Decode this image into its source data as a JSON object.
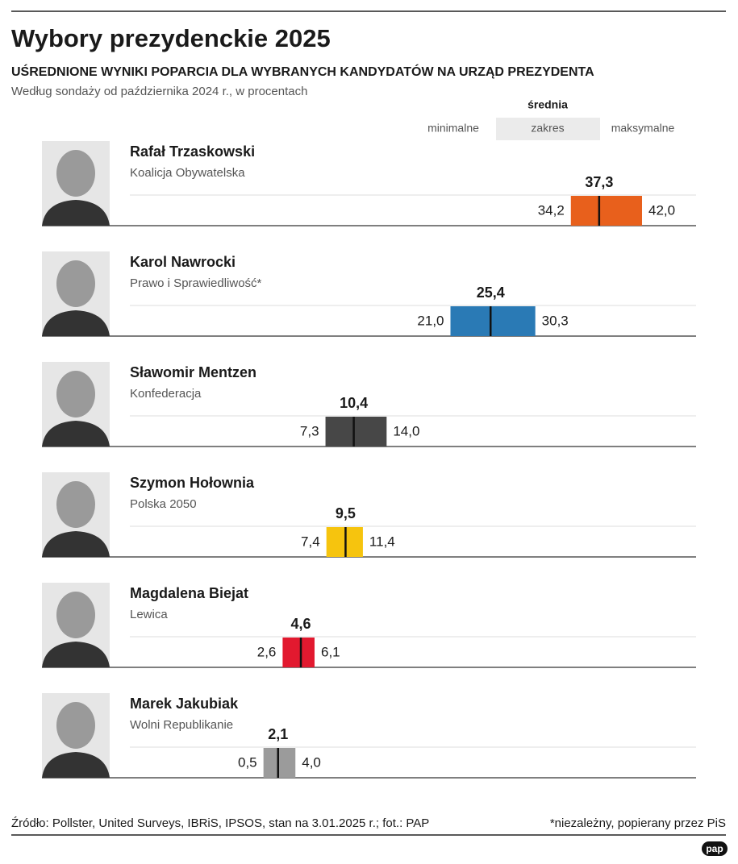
{
  "chart_data": {
    "type": "range",
    "title": "Wybory prezydenckie 2025",
    "subtitle": "UŚREDNIONE WYNIKI POPARCIA DLA WYBRANYCH KANDYDATÓW NA URZĄD PREZYDENTA",
    "note": "Według sondaży od października 2024 r., w procentach",
    "range_label": "zakres",
    "categories": [
      "Rafał Trzaskowski",
      "Karol Nawrocki",
      "Sławomir Mentzen",
      "Szymon Hołownia",
      "Magdalena Biejat",
      "Marek Jakubiak"
    ],
    "parties": [
      "Koalicja Obywatelska",
      "Prawo i Sprawiedliwość*",
      "Konfederacja",
      "Polska 2050",
      "Lewica",
      "Wolni Republikanie"
    ],
    "colors": [
      "#e8601c",
      "#2a7ab5",
      "#474747",
      "#f6c40e",
      "#e2192f",
      "#9b9b9b"
    ],
    "series": [
      {
        "name": "minimalne",
        "values": [
          34.2,
          21.0,
          7.3,
          7.4,
          2.6,
          0.5
        ],
        "value_labels": [
          "34,2",
          "21,0",
          "7,3",
          "7,4",
          "2,6",
          "0,5"
        ]
      },
      {
        "name": "średnia",
        "values": [
          37.3,
          25.4,
          10.4,
          9.5,
          4.6,
          2.1
        ],
        "value_labels": [
          "37,3",
          "25,4",
          "10,4",
          "9,5",
          "4,6",
          "2,1"
        ]
      },
      {
        "name": "maksymalne",
        "values": [
          42.0,
          30.3,
          14.0,
          11.4,
          6.1,
          4.0
        ],
        "value_labels": [
          "42,0",
          "30,3",
          "14,0",
          "11,4",
          "6,1",
          "4,0"
        ]
      }
    ],
    "xlim": [
      0,
      42
    ],
    "source": "Źródło: Pollster, United Surveys, IBRiS, IPSOS, stan na 3.01.2025 r.; fot.: PAP",
    "footnote": "*niezależny, popierany przez PiS",
    "logo": "pap"
  }
}
